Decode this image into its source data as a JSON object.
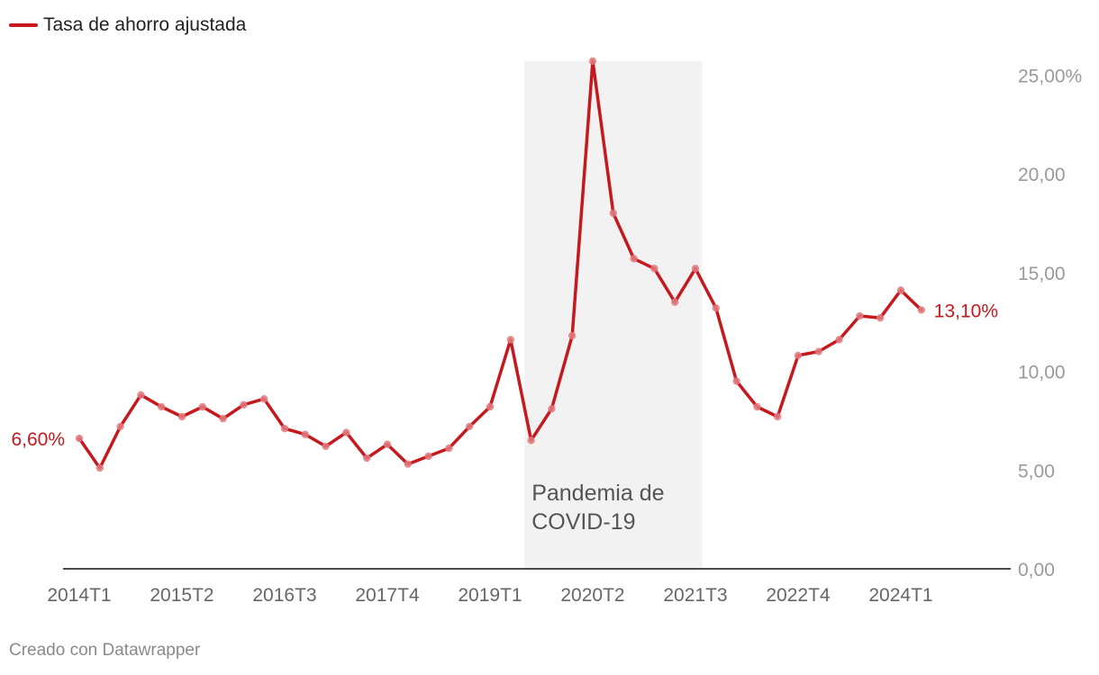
{
  "chart_data": {
    "type": "line",
    "legend_position": "top-left",
    "grid": false,
    "series": [
      {
        "name": "Tasa de ahorro ajustada",
        "color": "#c5191e",
        "values": [
          6.6,
          5.1,
          7.2,
          8.8,
          8.2,
          7.7,
          8.2,
          7.6,
          8.3,
          8.6,
          7.1,
          6.8,
          6.2,
          6.9,
          5.6,
          6.3,
          5.3,
          5.7,
          6.1,
          7.2,
          8.2,
          11.6,
          6.5,
          8.1,
          11.8,
          25.7,
          18.0,
          15.7,
          15.2,
          13.5,
          15.2,
          13.2,
          9.5,
          8.2,
          7.7,
          10.8,
          11.0,
          11.6,
          12.8,
          12.7,
          14.1,
          13.1
        ]
      }
    ],
    "x": [
      "2014T1",
      "2014T2",
      "2014T3",
      "2014T4",
      "2015T1",
      "2015T2",
      "2015T3",
      "2015T4",
      "2016T1",
      "2016T2",
      "2016T3",
      "2016T4",
      "2017T1",
      "2017T2",
      "2017T3",
      "2017T4",
      "2018T1",
      "2018T2",
      "2018T3",
      "2018T4",
      "2019T1",
      "2019T2",
      "2019T3",
      "2019T4",
      "2020T1",
      "2020T2",
      "2020T3",
      "2020T4",
      "2021T1",
      "2021T2",
      "2021T3",
      "2021T4",
      "2022T1",
      "2022T2",
      "2022T3",
      "2022T4",
      "2023T1",
      "2023T2",
      "2023T3",
      "2023T4",
      "2024T1",
      "2024T2"
    ],
    "x_tick_labels": [
      "2014T1",
      "2015T2",
      "2016T3",
      "2017T4",
      "2019T1",
      "2020T2",
      "2021T3",
      "2022T4",
      "2024T1"
    ],
    "ylim": [
      0,
      25.7
    ],
    "y_ticks": [
      0,
      5,
      10,
      15,
      20,
      25
    ],
    "y_tick_labels": [
      "0,00",
      "5,00",
      "10,00",
      "15,00",
      "20,00",
      "25,00%"
    ],
    "first_label": "6,60%",
    "last_label": "13,10%",
    "shaded_region": {
      "from": "2019T3",
      "to": "2021T3",
      "label_line1": "Pandemia de",
      "label_line2": "COVID-19",
      "color": "#f2f2f2"
    }
  },
  "footer": {
    "credit": "Creado con Datawrapper"
  }
}
